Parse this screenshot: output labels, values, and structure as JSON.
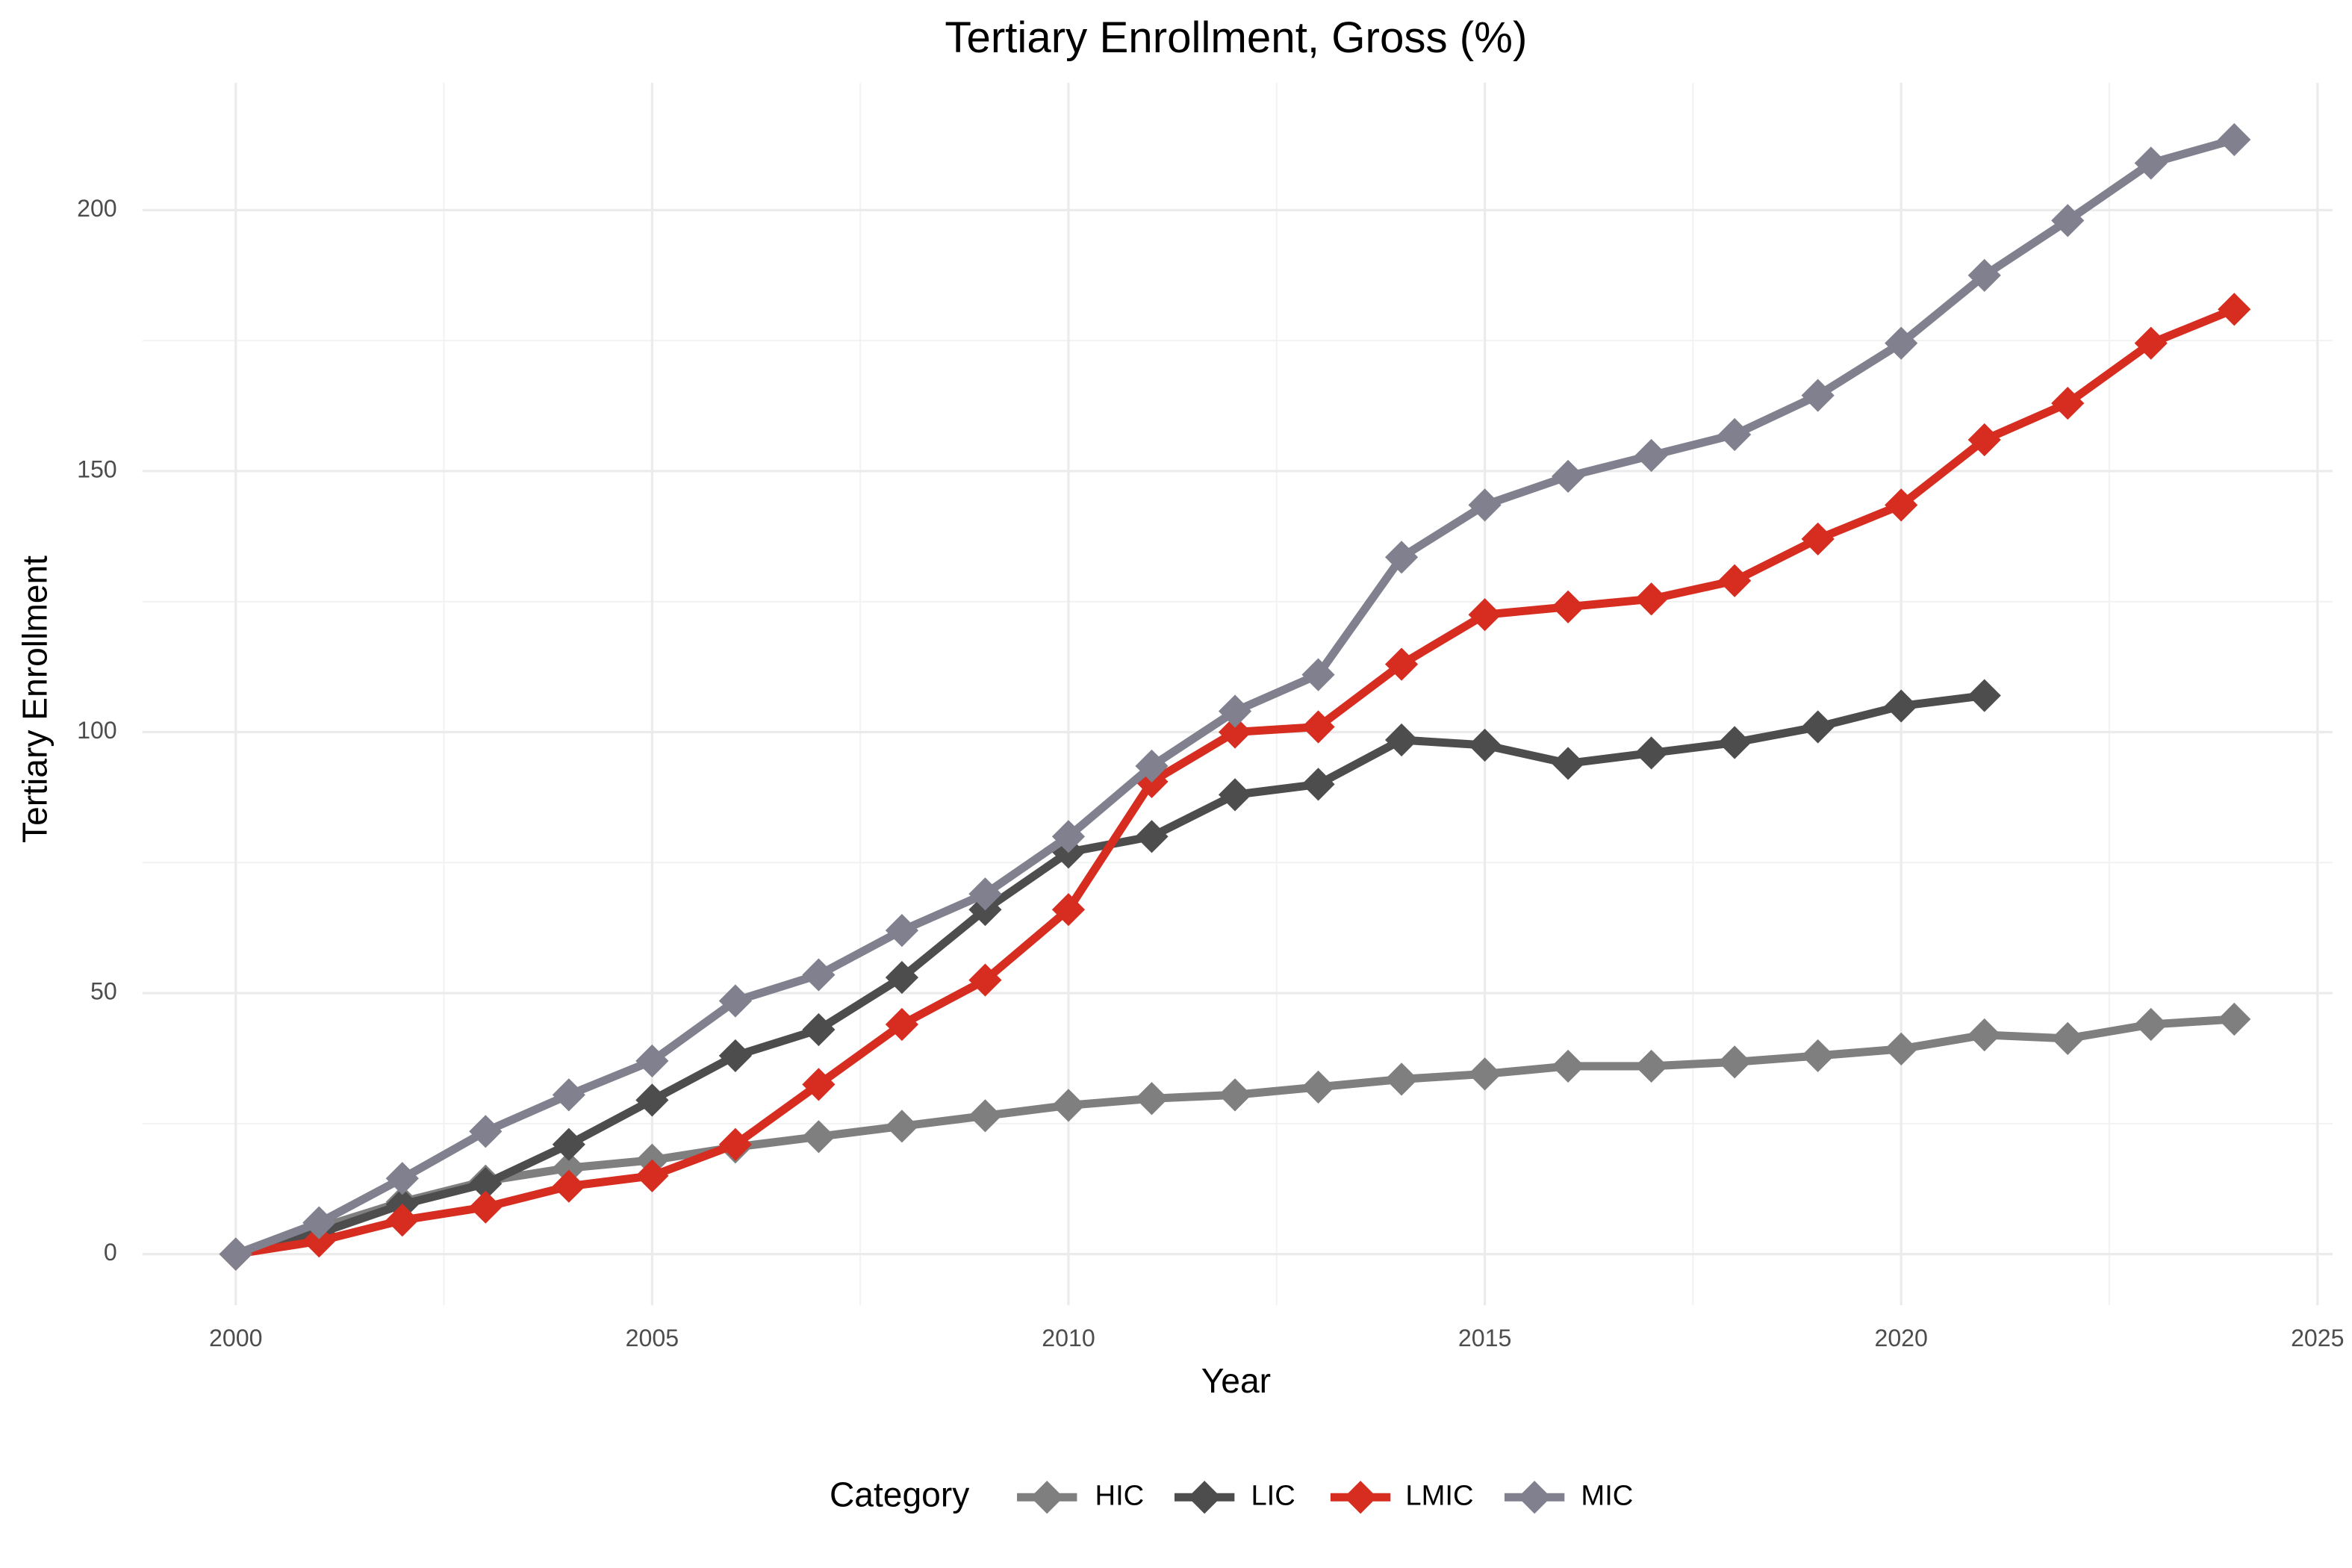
{
  "chart_data": {
    "type": "line",
    "title": "Tertiary Enrollment, Gross (%)",
    "x_label": "Year",
    "y_label": "Tertiary Enrollment",
    "x": [
      2000,
      2001,
      2002,
      2003,
      2004,
      2005,
      2006,
      2007,
      2008,
      2009,
      2010,
      2011,
      2012,
      2013,
      2014,
      2015,
      2016,
      2017,
      2018,
      2019,
      2020,
      2021,
      2022,
      2023,
      2024
    ],
    "series": [
      {
        "name": "HIC",
        "color": "#7f7f7f",
        "values": [
          0,
          5,
          10,
          14,
          16.5,
          18,
          20.5,
          22.5,
          24.5,
          26.5,
          28.5,
          29.8,
          30.5,
          32,
          33.5,
          34.5,
          36,
          36,
          36.8,
          38,
          39.3,
          42,
          41.3,
          44,
          45
        ]
      },
      {
        "name": "LIC",
        "color": "#4d4d4d",
        "values": [
          0,
          4,
          9.5,
          13.5,
          21,
          29.5,
          38,
          43,
          53,
          66,
          77,
          80,
          88,
          90,
          98.5,
          97.5,
          94,
          96,
          98,
          101,
          105,
          107,
          null,
          null,
          null
        ]
      },
      {
        "name": "LMIC",
        "color": "#d62d20",
        "values": [
          0,
          2.5,
          6.5,
          9,
          13,
          15,
          21,
          32.5,
          44,
          52.5,
          66,
          90.5,
          100,
          101,
          113,
          122.5,
          124,
          125.5,
          129,
          137,
          143.5,
          156,
          163,
          174.5,
          181
        ]
      },
      {
        "name": "MIC",
        "color": "#80808e",
        "values": [
          0,
          6,
          14.5,
          23.5,
          30.5,
          37,
          48.5,
          53.5,
          62,
          69,
          80,
          93.5,
          104,
          111,
          133.5,
          143.5,
          149,
          153,
          157,
          164.5,
          174.5,
          187.5,
          198,
          209,
          213.5
        ]
      }
    ],
    "xlim": [
      1998.88,
      2025.18
    ],
    "ylim": [
      -9.8,
      224.4
    ],
    "xticks": [
      2000,
      2005,
      2010,
      2015,
      2020,
      2025
    ],
    "yticks": [
      0,
      50,
      100,
      150,
      200
    ],
    "grid": true,
    "legend_title": "Category",
    "legend_position": "bottom",
    "marker": "diamond"
  }
}
